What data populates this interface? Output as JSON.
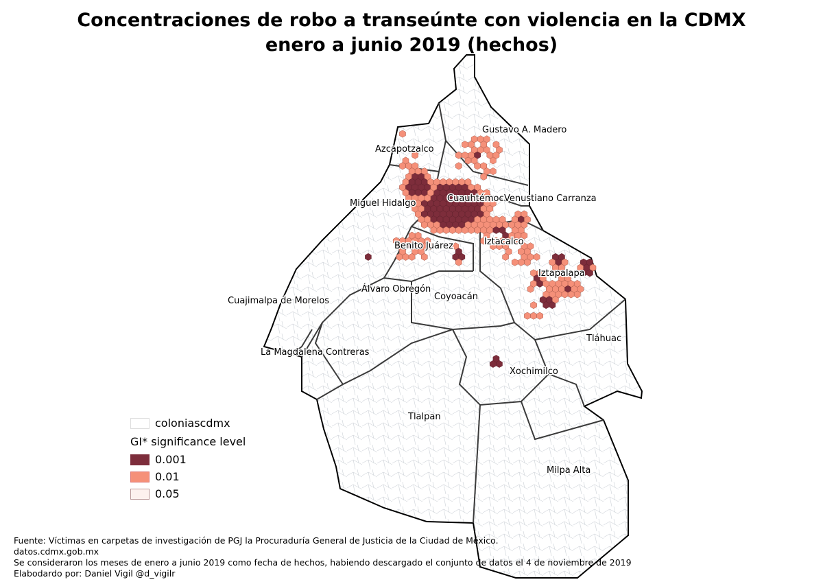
{
  "title": {
    "line1": "Concentraciones de robo a transeúnte con violencia en la CDMX",
    "line2": "enero a junio 2019 (hechos)"
  },
  "map": {
    "boroughs": [
      "Gustavo A. Madero",
      "Azcapotzalco",
      "Miguel Hidalgo",
      "Cuauhtémoc",
      "Venustiano Carranza",
      "Benito Juárez",
      "Iztacalco",
      "Iztapalapa",
      "Álvaro Obregón",
      "Coyoacán",
      "Cuajimalpa de Morelos",
      "Tláhuac",
      "La Magdalena Contreras",
      "Xochimilco",
      "Tlalpan",
      "Milpa Alta"
    ],
    "colors": {
      "sig_0001": "#7d2d3b",
      "sig_001": "#f59079",
      "sig_005": "#fdf1ee",
      "colonias_stroke": "#c9ced4",
      "borough_stroke": "#333333"
    }
  },
  "legend": {
    "layer_label": "coloniascdmx",
    "heading": "GI* significance level",
    "items": [
      {
        "label": "0.001",
        "color": "#7d2d3b"
      },
      {
        "label": "0.01",
        "color": "#f59079"
      },
      {
        "label": "0.05",
        "color": "#fdf1ee"
      }
    ]
  },
  "footer": {
    "line1": "Fuente: Víctimas en carpetas de investigación de PGJ la Procuraduría General de Justicia de la Ciudad de México.",
    "line2": "datos.cdmx.gob.mx",
    "line3": "Se consideraron los meses de enero a junio 2019 como fecha de hechos, habiendo descargado el conjunto de datos el 4 de noviembre de 2019",
    "line4": "Elabodardo por: Daniel Vigil @d_vigilr"
  }
}
